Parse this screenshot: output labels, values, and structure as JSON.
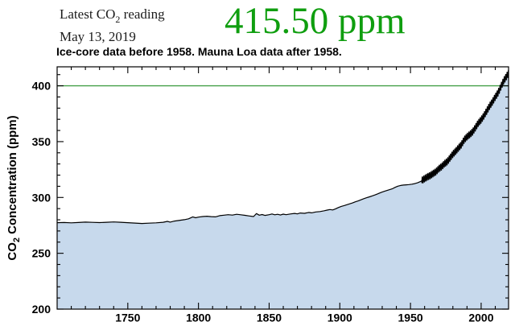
{
  "header": {
    "latest_label": {
      "pre": "Latest CO",
      "sub": "2",
      "post": " reading"
    },
    "date": "May 13, 2019",
    "reading": "415.50 ppm",
    "reading_color": "#0f9e0f"
  },
  "subtitle": "Ice-core data before 1958. Mauna Loa data after 1958.",
  "chart_data": {
    "type": "area",
    "title": "",
    "xlabel": "",
    "ylabel_parts": {
      "pre": "CO",
      "sub": "2",
      "post": " Concentration (ppm)"
    },
    "xlim": [
      1700,
      2019.4
    ],
    "ylim": [
      200,
      417
    ],
    "x_major_ticks": [
      1750,
      1800,
      1850,
      1900,
      1950,
      2000
    ],
    "x_minor_step": 10,
    "y_major_ticks": [
      200,
      250,
      300,
      350,
      400
    ],
    "y_minor_step": 10,
    "grid": false,
    "legend": "none",
    "reference_line": {
      "value": 400,
      "color": "#44a048"
    },
    "area_fill": "#c7d9ec",
    "line_color": "#000000",
    "series": [
      {
        "name": "ice-core",
        "points": [
          [
            1700,
            277.4
          ],
          [
            1705,
            277.6
          ],
          [
            1710,
            277.3
          ],
          [
            1715,
            277.6
          ],
          [
            1720,
            277.9
          ],
          [
            1725,
            277.7
          ],
          [
            1730,
            277.5
          ],
          [
            1735,
            277.8
          ],
          [
            1740,
            278.1
          ],
          [
            1745,
            277.8
          ],
          [
            1750,
            277.4
          ],
          [
            1755,
            277.1
          ],
          [
            1760,
            276.7
          ],
          [
            1765,
            277.0
          ],
          [
            1770,
            277.3
          ],
          [
            1775,
            277.8
          ],
          [
            1778,
            278.6
          ],
          [
            1780,
            277.9
          ],
          [
            1783,
            278.9
          ],
          [
            1786,
            279.4
          ],
          [
            1790,
            280.1
          ],
          [
            1793,
            280.9
          ],
          [
            1796,
            282.6
          ],
          [
            1798,
            281.8
          ],
          [
            1800,
            282.4
          ],
          [
            1803,
            282.9
          ],
          [
            1806,
            283.2
          ],
          [
            1809,
            282.8
          ],
          [
            1812,
            282.6
          ],
          [
            1815,
            283.7
          ],
          [
            1818,
            284.1
          ],
          [
            1821,
            284.6
          ],
          [
            1824,
            284.2
          ],
          [
            1827,
            284.9
          ],
          [
            1830,
            284.5
          ],
          [
            1833,
            284.0
          ],
          [
            1836,
            283.4
          ],
          [
            1839,
            282.9
          ],
          [
            1841,
            285.6
          ],
          [
            1843,
            284.1
          ],
          [
            1845,
            284.7
          ],
          [
            1847,
            283.9
          ],
          [
            1850,
            284.6
          ],
          [
            1852,
            285.2
          ],
          [
            1854,
            284.5
          ],
          [
            1856,
            284.9
          ],
          [
            1858,
            284.3
          ],
          [
            1860,
            285.1
          ],
          [
            1862,
            284.6
          ],
          [
            1865,
            285.2
          ],
          [
            1868,
            285.7
          ],
          [
            1870,
            285.3
          ],
          [
            1872,
            286.1
          ],
          [
            1875,
            285.8
          ],
          [
            1878,
            286.6
          ],
          [
            1880,
            286.2
          ],
          [
            1883,
            287.0
          ],
          [
            1886,
            287.4
          ],
          [
            1889,
            288.1
          ],
          [
            1891,
            288.7
          ],
          [
            1893,
            289.2
          ],
          [
            1895,
            288.8
          ],
          [
            1897,
            289.8
          ],
          [
            1899,
            291.0
          ],
          [
            1901,
            292.0
          ],
          [
            1903,
            292.7
          ],
          [
            1905,
            293.5
          ],
          [
            1907,
            294.3
          ],
          [
            1909,
            295.1
          ],
          [
            1911,
            296.1
          ],
          [
            1913,
            296.9
          ],
          [
            1915,
            297.9
          ],
          [
            1917,
            298.9
          ],
          [
            1919,
            299.8
          ],
          [
            1921,
            300.6
          ],
          [
            1923,
            301.4
          ],
          [
            1925,
            302.3
          ],
          [
            1927,
            303.3
          ],
          [
            1929,
            304.4
          ],
          [
            1931,
            305.3
          ],
          [
            1933,
            306.1
          ],
          [
            1935,
            306.9
          ],
          [
            1937,
            307.7
          ],
          [
            1939,
            309.0
          ],
          [
            1941,
            310.1
          ],
          [
            1943,
            310.7
          ],
          [
            1945,
            311.1
          ],
          [
            1947,
            311.3
          ],
          [
            1949,
            311.5
          ],
          [
            1951,
            311.9
          ],
          [
            1953,
            312.4
          ],
          [
            1955,
            313.1
          ],
          [
            1957,
            314.2
          ],
          [
            1958,
            315.0
          ]
        ]
      },
      {
        "name": "mauna-loa-trend",
        "seasonal_amplitude": 3.0,
        "samples_per_year": 12,
        "points": [
          [
            1958,
            315.2
          ],
          [
            1960,
            316.9
          ],
          [
            1962,
            318.4
          ],
          [
            1964,
            319.6
          ],
          [
            1966,
            321.4
          ],
          [
            1968,
            323.0
          ],
          [
            1970,
            325.7
          ],
          [
            1972,
            327.5
          ],
          [
            1974,
            330.2
          ],
          [
            1976,
            332.1
          ],
          [
            1978,
            335.4
          ],
          [
            1980,
            338.8
          ],
          [
            1982,
            341.4
          ],
          [
            1984,
            344.4
          ],
          [
            1986,
            347.2
          ],
          [
            1988,
            351.6
          ],
          [
            1990,
            354.4
          ],
          [
            1992,
            356.4
          ],
          [
            1994,
            358.8
          ],
          [
            1996,
            362.6
          ],
          [
            1998,
            366.7
          ],
          [
            2000,
            369.5
          ],
          [
            2002,
            373.2
          ],
          [
            2004,
            377.5
          ],
          [
            2006,
            381.9
          ],
          [
            2008,
            385.6
          ],
          [
            2010,
            389.9
          ],
          [
            2012,
            393.8
          ],
          [
            2014,
            399.3
          ],
          [
            2016,
            404.6
          ],
          [
            2018,
            408.5
          ],
          [
            2019.4,
            411.5
          ]
        ]
      }
    ]
  }
}
